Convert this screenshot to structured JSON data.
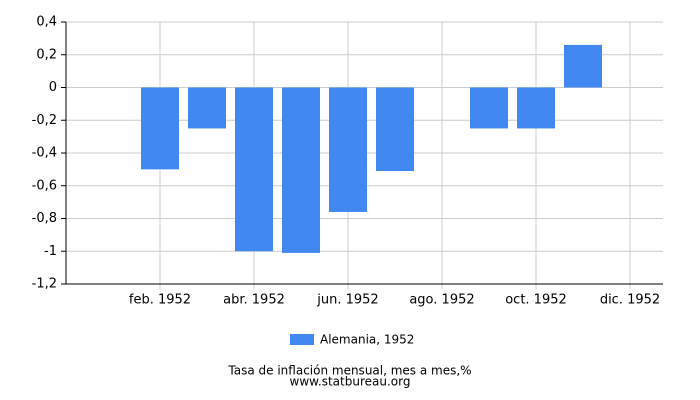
{
  "chart_data": {
    "type": "bar",
    "categories": [
      null,
      "feb. 1952",
      null,
      "abr. 1952",
      null,
      "jun. 1952",
      null,
      "ago. 1952",
      null,
      "oct. 1952",
      null,
      "dic. 1952"
    ],
    "series": [
      {
        "name": "Alemania, 1952",
        "color": "#4189f0",
        "values": [
          0,
          -0.5,
          -0.25,
          -1.0,
          -1.01,
          -0.76,
          -0.51,
          0,
          -0.25,
          -0.25,
          0.26,
          0
        ]
      }
    ],
    "ylim": [
      -1.2,
      0.4
    ],
    "yticks": [
      {
        "value": 0.4,
        "label": "0,4"
      },
      {
        "value": 0.2,
        "label": "0,2"
      },
      0,
      {
        "value": -0.2,
        "label": "-0,2"
      },
      {
        "value": -0.4,
        "label": "-0,4"
      },
      {
        "value": -0.6,
        "label": "-0,6"
      },
      {
        "value": -0.8,
        "label": "-0,8"
      },
      -1,
      {
        "value": -1.2,
        "label": "-1,2"
      }
    ],
    "grid": true,
    "legend": "bottom",
    "xlabel": "Tasa de inflación mensual, mes a mes,%",
    "source": "www.statbureau.org"
  }
}
